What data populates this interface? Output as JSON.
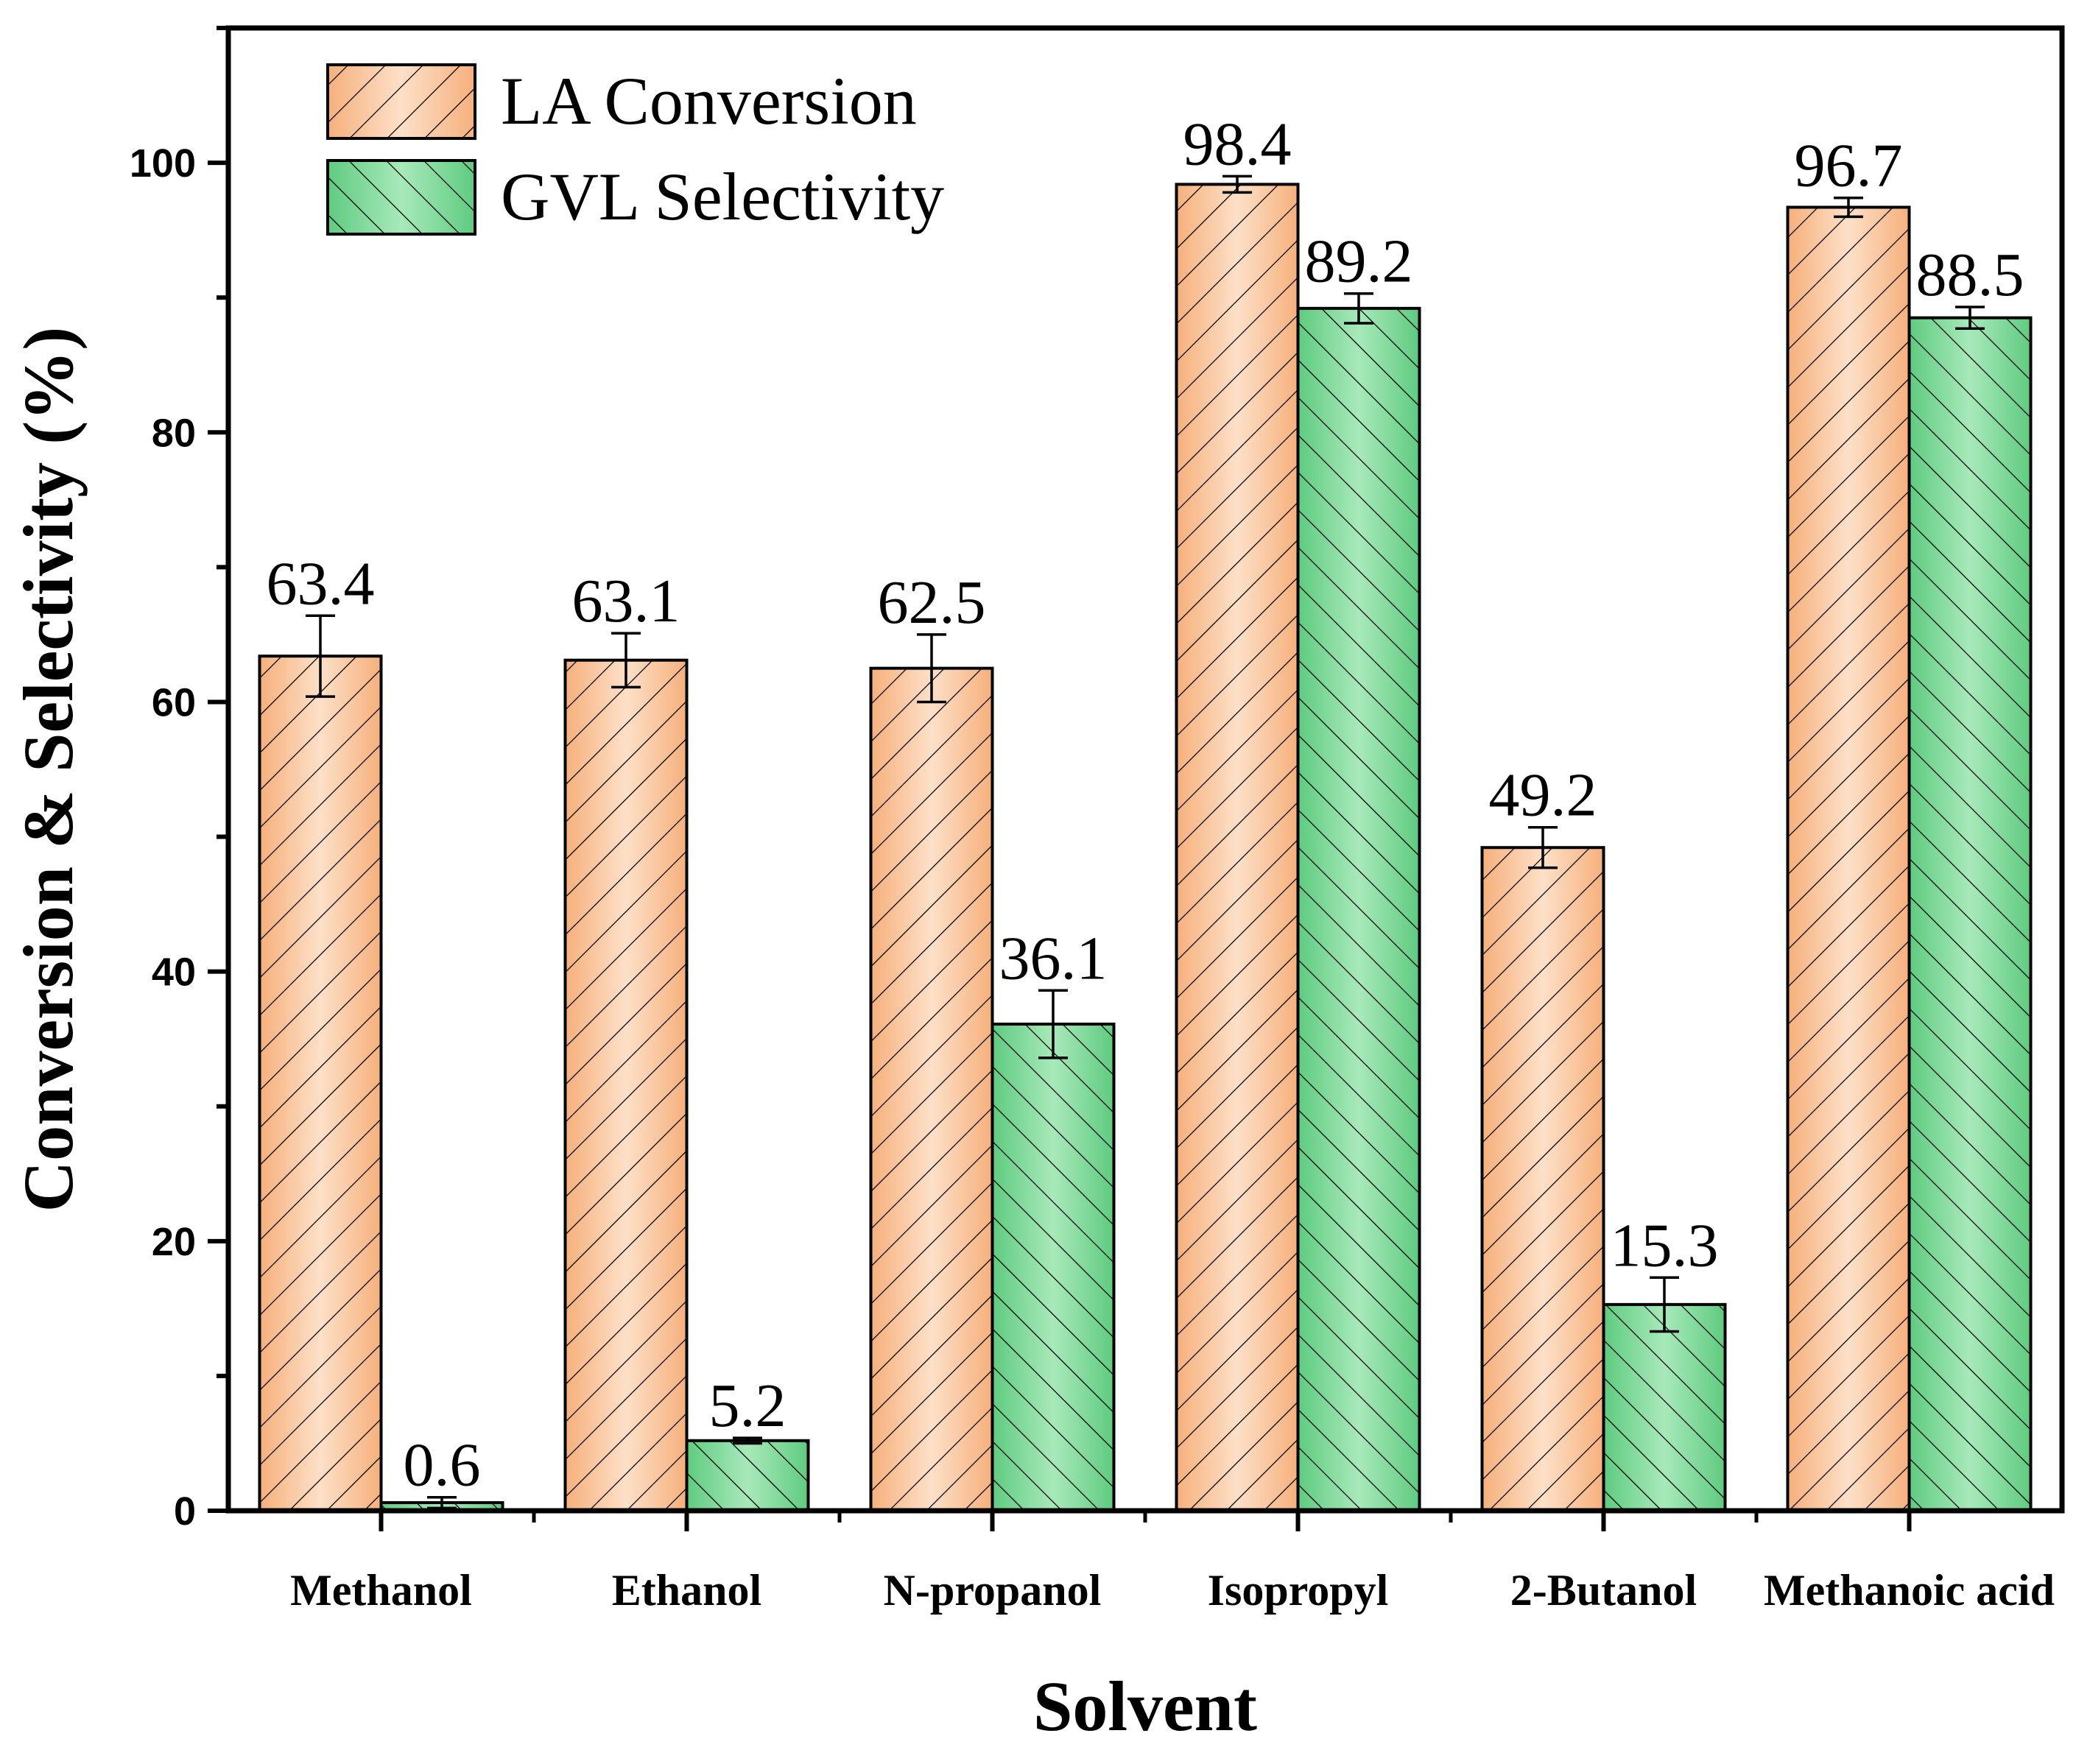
{
  "chart_data": {
    "type": "bar",
    "title": "",
    "xlabel": "Solvent",
    "ylabel": "Conversion & Selectivity (%)",
    "ylim": [
      0,
      110
    ],
    "yticks": [
      0,
      20,
      40,
      60,
      80,
      100
    ],
    "legend_position": "top-left",
    "categories": [
      "Methanol",
      "Ethanol",
      "N-propanol",
      "Isopropyl",
      "2-Butanol",
      "Methanoic acid"
    ],
    "series": [
      {
        "name": "LA Conversion",
        "color": "#f9c196",
        "hatch": "forward-diagonal",
        "values": [
          63.4,
          63.1,
          62.5,
          98.4,
          49.2,
          96.7
        ],
        "labels": [
          "63.4",
          "63.1",
          "62.5",
          "98.4",
          "49.2",
          "96.7"
        ],
        "errors": [
          3.0,
          2.0,
          2.5,
          0.6,
          1.5,
          0.7
        ]
      },
      {
        "name": "GVL Selectivity",
        "color": "#7fd89a",
        "hatch": "back-diagonal",
        "values": [
          0.6,
          5.2,
          36.1,
          89.2,
          15.3,
          88.5
        ],
        "labels": [
          "0.6",
          "5.2",
          "36.1",
          "89.2",
          "15.3",
          "88.5"
        ],
        "errors": [
          0.4,
          0.2,
          2.5,
          1.1,
          2.0,
          0.8
        ]
      }
    ]
  }
}
